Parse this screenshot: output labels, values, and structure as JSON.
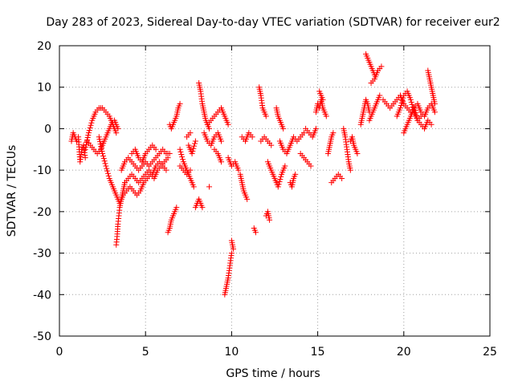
{
  "chart_data": {
    "type": "scatter",
    "title": "Day 283 of 2023, Sidereal Day-to-day VTEC variation (SDTVAR) for receiver eur2",
    "xlabel": "GPS time / hours",
    "ylabel": "SDTVAR / TECUs",
    "xlim": [
      0,
      25
    ],
    "ylim": [
      -50,
      20
    ],
    "xticks": [
      0,
      5,
      10,
      15,
      20,
      25
    ],
    "yticks": [
      -50,
      -40,
      -30,
      -20,
      -10,
      0,
      10,
      20
    ],
    "xtick_labels": [
      "0",
      "5",
      "10",
      "15",
      "20",
      "25"
    ],
    "ytick_labels": [
      "-50",
      "-40",
      "-30",
      "-20",
      "-10",
      "0",
      "10",
      "20"
    ],
    "grid": true,
    "marker": "+",
    "color": "#ff0000",
    "segments": [
      {
        "x": [
          0.7,
          0.8,
          0.9,
          1.0
        ],
        "y": [
          -3,
          -1,
          -2,
          -3
        ]
      },
      {
        "x": [
          1.1,
          1.2,
          1.3,
          1.4,
          1.5
        ],
        "y": [
          -2,
          -8,
          -5,
          -4,
          -7
        ]
      },
      {
        "x": [
          1.5,
          1.7,
          1.9,
          2.1,
          2.3,
          2.5,
          2.7,
          2.9,
          3.1,
          3.3
        ],
        "y": [
          -5,
          -1,
          2,
          4,
          5,
          5,
          4,
          3,
          1,
          -1
        ]
      },
      {
        "x": [
          1.6,
          1.8,
          2.0,
          2.2,
          2.4,
          2.6,
          2.8,
          3.0,
          3.2,
          3.4
        ],
        "y": [
          -3,
          -4,
          -5,
          -6,
          -5,
          -3,
          -1,
          1,
          2,
          0
        ]
      },
      {
        "x": [
          2.3,
          2.5,
          2.7,
          2.9,
          3.1,
          3.3,
          3.5
        ],
        "y": [
          -2,
          -6,
          -9,
          -12,
          -14,
          -16,
          -18
        ]
      },
      {
        "x": [
          3.3,
          3.35,
          3.4,
          3.45,
          3.5,
          3.6,
          3.7,
          3.8
        ],
        "y": [
          -28,
          -26,
          -23,
          -21,
          -19,
          -17,
          -15,
          -13
        ]
      },
      {
        "x": [
          3.6,
          3.8,
          4.0,
          4.2,
          4.4,
          4.6,
          4.8,
          5.0,
          5.2,
          5.4,
          5.6,
          5.8,
          6.0,
          6.2,
          6.4
        ],
        "y": [
          -10,
          -8,
          -7,
          -8,
          -9,
          -10,
          -9,
          -8,
          -9,
          -8,
          -7,
          -6,
          -5,
          -6,
          -6
        ]
      },
      {
        "x": [
          3.5,
          3.7,
          3.9,
          4.1,
          4.3,
          4.5,
          4.7,
          4.9,
          5.1,
          5.3,
          5.5,
          5.7,
          5.9,
          6.1,
          6.3
        ],
        "y": [
          -18,
          -16,
          -15,
          -14,
          -15,
          -16,
          -15,
          -13,
          -12,
          -11,
          -12,
          -10,
          -9,
          -8,
          -7
        ]
      },
      {
        "x": [
          3.8,
          4.0,
          4.2,
          4.4,
          4.6,
          4.8,
          5.0,
          5.2,
          5.4,
          5.6,
          5.8,
          6.0,
          6.2
        ],
        "y": [
          -13,
          -12,
          -11,
          -12,
          -13,
          -12,
          -11,
          -10,
          -11,
          -9,
          -8,
          -9,
          -10
        ]
      },
      {
        "x": [
          4.2,
          4.4,
          4.6,
          4.8,
          5.0,
          5.2,
          5.4,
          5.6
        ],
        "y": [
          -6,
          -5,
          -7,
          -8,
          -6,
          -5,
          -4,
          -5
        ]
      },
      {
        "x": [
          6.3,
          6.4,
          6.5,
          6.6,
          6.7,
          6.8
        ],
        "y": [
          -25,
          -24,
          -22,
          -21,
          -20,
          -19
        ]
      },
      {
        "x": [
          6.4,
          6.5,
          6.6,
          6.7,
          6.8,
          6.9,
          7.0
        ],
        "y": [
          1,
          0,
          1,
          2,
          3,
          5,
          6
        ]
      },
      {
        "x": [
          7.0,
          7.2,
          7.4,
          7.6,
          7.8
        ],
        "y": [
          -5,
          -8,
          -10,
          -12,
          -14
        ]
      },
      {
        "x": [
          7.0,
          7.2,
          7.4,
          7.6
        ],
        "y": [
          -9,
          -10,
          -11,
          -10
        ]
      },
      {
        "x": [
          7.5,
          7.7,
          7.9
        ],
        "y": [
          -4,
          -6,
          -3
        ]
      },
      {
        "x": [
          7.4,
          7.6
        ],
        "y": [
          -2,
          -1
        ]
      },
      {
        "x": [
          7.9,
          8.0,
          8.1,
          8.2,
          8.3
        ],
        "y": [
          -19,
          -18,
          -17,
          -18,
          -19
        ]
      },
      {
        "x": [
          8.1,
          8.2,
          8.3,
          8.4,
          8.5,
          8.6,
          8.7
        ],
        "y": [
          11,
          9,
          6,
          4,
          2,
          1,
          0
        ]
      },
      {
        "x": [
          8.6,
          8.8,
          9.0,
          9.2,
          9.4,
          9.6,
          9.8
        ],
        "y": [
          1,
          2,
          3,
          4,
          5,
          3,
          1
        ]
      },
      {
        "x": [
          8.4,
          8.6,
          8.8,
          9.0,
          9.2,
          9.4
        ],
        "y": [
          -1,
          -3,
          -4,
          -2,
          -1,
          -3
        ]
      },
      {
        "x": [
          8.7
        ],
        "y": [
          -14
        ]
      },
      {
        "x": [
          9.0,
          9.2,
          9.4
        ],
        "y": [
          -5,
          -6,
          -8
        ]
      },
      {
        "x": [
          9.6,
          9.7,
          9.8,
          9.9,
          10.0
        ],
        "y": [
          -40,
          -38,
          -36,
          -33,
          -30
        ]
      },
      {
        "x": [
          10.0,
          10.1
        ],
        "y": [
          -27,
          -29
        ]
      },
      {
        "x": [
          9.8,
          10.0,
          10.2,
          10.4
        ],
        "y": [
          -7,
          -9,
          -8,
          -10
        ]
      },
      {
        "x": [
          10.5,
          10.6,
          10.7,
          10.8,
          10.9
        ],
        "y": [
          -11,
          -13,
          -15,
          -16,
          -17
        ]
      },
      {
        "x": [
          10.6,
          10.8,
          11.0,
          11.2
        ],
        "y": [
          -2,
          -3,
          -1,
          -2
        ]
      },
      {
        "x": [
          11.3,
          11.4
        ],
        "y": [
          -24,
          -25
        ]
      },
      {
        "x": [
          11.6,
          11.7,
          11.8,
          11.9,
          12.0
        ],
        "y": [
          10,
          8,
          5,
          4,
          3
        ]
      },
      {
        "x": [
          11.7,
          11.9,
          12.1,
          12.3
        ],
        "y": [
          -3,
          -2,
          -3,
          -4
        ]
      },
      {
        "x": [
          12.0,
          12.1,
          12.2
        ],
        "y": [
          -21,
          -20,
          -22
        ]
      },
      {
        "x": [
          12.1,
          12.3,
          12.5,
          12.7,
          12.9,
          13.1
        ],
        "y": [
          -8,
          -10,
          -12,
          -14,
          -11,
          -9
        ]
      },
      {
        "x": [
          12.6,
          12.7,
          12.8,
          12.9,
          13.0
        ],
        "y": [
          5,
          3,
          2,
          1,
          0
        ]
      },
      {
        "x": [
          12.8,
          13.0,
          13.2,
          13.4,
          13.6,
          13.8,
          14.0,
          14.2
        ],
        "y": [
          -3,
          -5,
          -6,
          -4,
          -2,
          -3,
          -2,
          -1
        ]
      },
      {
        "x": [
          13.4,
          13.5,
          13.6,
          13.7
        ],
        "y": [
          -13,
          -14,
          -12,
          -11
        ]
      },
      {
        "x": [
          14.0,
          14.2,
          14.4,
          14.6
        ],
        "y": [
          -6,
          -7,
          -8,
          -9
        ]
      },
      {
        "x": [
          14.3,
          14.5,
          14.7,
          14.9
        ],
        "y": [
          0,
          -1,
          -2,
          0
        ]
      },
      {
        "x": [
          14.9,
          15.0,
          15.1,
          15.2,
          15.3,
          15.4,
          15.5
        ],
        "y": [
          4,
          6,
          5,
          7,
          5,
          4,
          3
        ]
      },
      {
        "x": [
          15.1,
          15.2,
          15.3
        ],
        "y": [
          9,
          8,
          7
        ]
      },
      {
        "x": [
          15.6,
          15.7,
          15.8,
          15.9
        ],
        "y": [
          -6,
          -4,
          -2,
          -1
        ]
      },
      {
        "x": [
          15.8,
          16.0,
          16.2,
          16.4
        ],
        "y": [
          -13,
          -12,
          -11,
          -12
        ]
      },
      {
        "x": [
          16.5,
          16.6,
          16.7,
          16.8,
          16.9
        ],
        "y": [
          0,
          -2,
          -5,
          -8,
          -10
        ]
      },
      {
        "x": [
          16.9,
          17.0,
          17.1,
          17.2,
          17.3
        ],
        "y": [
          -3,
          -2,
          -4,
          -5,
          -6
        ]
      },
      {
        "x": [
          17.5,
          17.6,
          17.7,
          17.8,
          17.9,
          18.0
        ],
        "y": [
          1,
          3,
          5,
          7,
          6,
          4
        ]
      },
      {
        "x": [
          17.8,
          17.9,
          18.0,
          18.1,
          18.2,
          18.3
        ],
        "y": [
          18,
          17,
          16,
          15,
          14,
          13
        ]
      },
      {
        "x": [
          18.1,
          18.3,
          18.5,
          18.7
        ],
        "y": [
          11,
          12,
          14,
          15
        ]
      },
      {
        "x": [
          18.0,
          18.2,
          18.4,
          18.6
        ],
        "y": [
          2,
          4,
          6,
          8
        ]
      },
      {
        "x": [
          18.8,
          19.0,
          19.2,
          19.4,
          19.6,
          19.8,
          20.0,
          20.2,
          20.4,
          20.6,
          20.8,
          21.0,
          21.2,
          21.4,
          21.6,
          21.8
        ],
        "y": [
          7,
          6,
          5,
          6,
          7,
          8,
          6,
          5,
          4,
          5,
          6,
          4,
          3,
          5,
          6,
          4
        ]
      },
      {
        "x": [
          19.6,
          19.8,
          20.0,
          20.2,
          20.4,
          20.6,
          20.8,
          21.0
        ],
        "y": [
          3,
          5,
          8,
          9,
          7,
          4,
          2,
          3
        ]
      },
      {
        "x": [
          20.0,
          20.2,
          20.4,
          20.6,
          20.8,
          21.0,
          21.2,
          21.4,
          21.6
        ],
        "y": [
          -1,
          1,
          3,
          5,
          2,
          1,
          0,
          2,
          1
        ]
      },
      {
        "x": [
          21.4,
          21.5,
          21.6,
          21.7,
          21.8
        ],
        "y": [
          14,
          12,
          10,
          8,
          6
        ]
      }
    ]
  }
}
